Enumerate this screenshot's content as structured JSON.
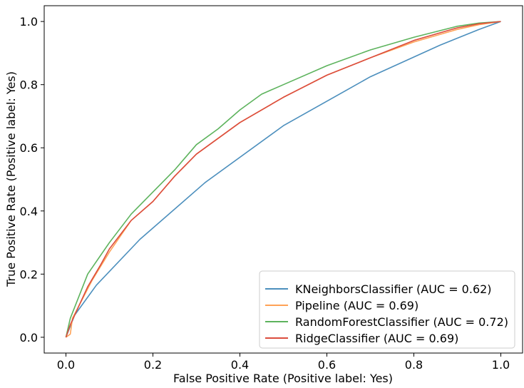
{
  "chart_data": {
    "type": "line",
    "xlabel": "False Positive Rate (Positive label: Yes)",
    "ylabel": "True Positive Rate (Positive label: Yes)",
    "xlim": [
      -0.05,
      1.05
    ],
    "ylim": [
      -0.05,
      1.05
    ],
    "x_ticks": [
      "0.0",
      "0.2",
      "0.4",
      "0.6",
      "0.8",
      "1.0"
    ],
    "y_ticks": [
      "0.0",
      "0.2",
      "0.4",
      "0.6",
      "0.8",
      "1.0"
    ],
    "grid": false,
    "legend_position": "bottom-right",
    "series": [
      {
        "name": "KNeighborsClassifier (AUC = 0.62)",
        "color": "#4c8fbd",
        "points": [
          [
            0,
            0
          ],
          [
            0.02,
            0.07
          ],
          [
            0.07,
            0.165
          ],
          [
            0.17,
            0.31
          ],
          [
            0.32,
            0.49
          ],
          [
            0.5,
            0.67
          ],
          [
            0.7,
            0.825
          ],
          [
            0.86,
            0.925
          ],
          [
            0.95,
            0.975
          ],
          [
            1.0,
            1.0
          ]
        ]
      },
      {
        "name": "Pipeline (AUC = 0.69)",
        "color": "#ffa256",
        "points": [
          [
            0,
            0
          ],
          [
            0.01,
            0.01
          ],
          [
            0.015,
            0.06
          ],
          [
            0.03,
            0.1
          ],
          [
            0.06,
            0.18
          ],
          [
            0.1,
            0.27
          ],
          [
            0.15,
            0.37
          ],
          [
            0.2,
            0.43
          ],
          [
            0.25,
            0.51
          ],
          [
            0.3,
            0.58
          ],
          [
            0.35,
            0.63
          ],
          [
            0.4,
            0.68
          ],
          [
            0.5,
            0.76
          ],
          [
            0.6,
            0.83
          ],
          [
            0.7,
            0.885
          ],
          [
            0.8,
            0.935
          ],
          [
            0.9,
            0.975
          ],
          [
            0.95,
            0.99
          ],
          [
            1.0,
            1.0
          ]
        ]
      },
      {
        "name": "RandomForestClassifier (AUC = 0.72)",
        "color": "#5db35d",
        "points": [
          [
            0,
            0
          ],
          [
            0.01,
            0.06
          ],
          [
            0.03,
            0.13
          ],
          [
            0.05,
            0.2
          ],
          [
            0.08,
            0.26
          ],
          [
            0.1,
            0.3
          ],
          [
            0.15,
            0.39
          ],
          [
            0.2,
            0.46
          ],
          [
            0.25,
            0.53
          ],
          [
            0.3,
            0.61
          ],
          [
            0.35,
            0.66
          ],
          [
            0.4,
            0.72
          ],
          [
            0.45,
            0.77
          ],
          [
            0.5,
            0.8
          ],
          [
            0.6,
            0.86
          ],
          [
            0.7,
            0.91
          ],
          [
            0.8,
            0.95
          ],
          [
            0.9,
            0.985
          ],
          [
            0.95,
            0.995
          ],
          [
            1.0,
            1.0
          ]
        ]
      },
      {
        "name": "RidgeClassifier (AUC = 0.69)",
        "color": "#db4d3e",
        "points": [
          [
            0,
            0
          ],
          [
            0.01,
            0.04
          ],
          [
            0.03,
            0.1
          ],
          [
            0.05,
            0.16
          ],
          [
            0.08,
            0.23
          ],
          [
            0.1,
            0.28
          ],
          [
            0.15,
            0.37
          ],
          [
            0.2,
            0.43
          ],
          [
            0.25,
            0.51
          ],
          [
            0.3,
            0.58
          ],
          [
            0.35,
            0.63
          ],
          [
            0.4,
            0.68
          ],
          [
            0.5,
            0.76
          ],
          [
            0.6,
            0.83
          ],
          [
            0.7,
            0.885
          ],
          [
            0.8,
            0.94
          ],
          [
            0.9,
            0.98
          ],
          [
            0.95,
            0.993
          ],
          [
            1.0,
            1.0
          ]
        ]
      }
    ]
  }
}
